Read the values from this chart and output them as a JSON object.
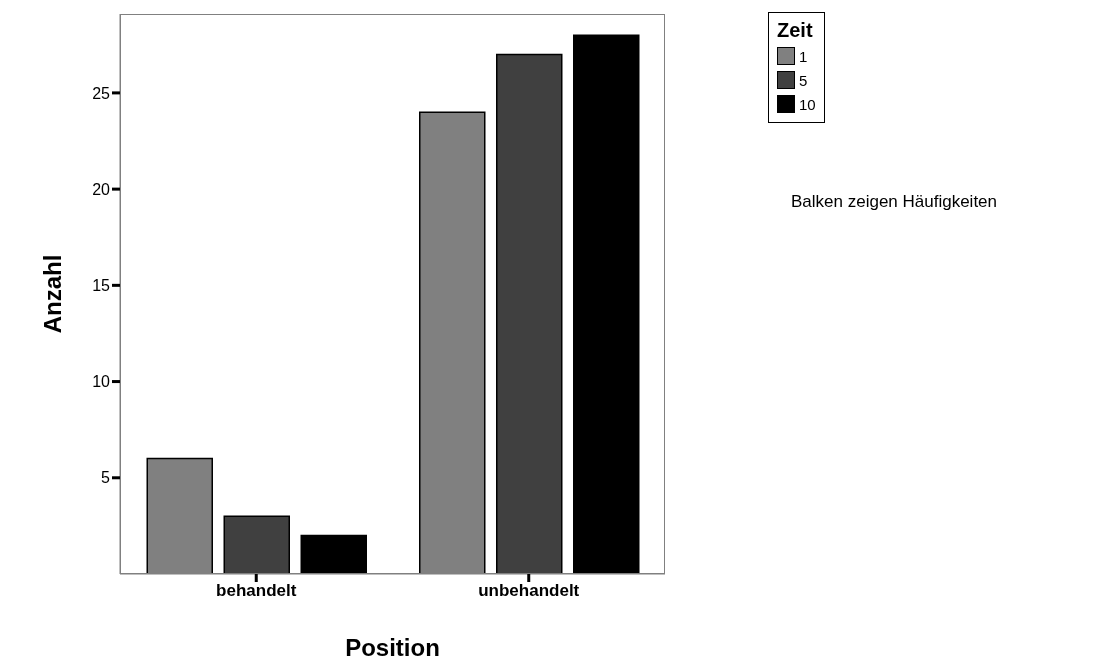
{
  "chart_data": {
    "type": "bar",
    "xlabel": "Position",
    "ylabel": "Anzahl",
    "legend_title": "Zeit",
    "categories": [
      "behandelt",
      "unbehandelt"
    ],
    "series": [
      {
        "name": "1",
        "color": "#808080",
        "values": [
          6,
          24
        ]
      },
      {
        "name": "5",
        "color": "#404040",
        "values": [
          3,
          27
        ]
      },
      {
        "name": "10",
        "color": "#000000",
        "values": [
          2,
          28
        ]
      }
    ],
    "ylim": [
      0,
      29.1
    ],
    "yticks": [
      5,
      10,
      15,
      20,
      25
    ],
    "grid": false,
    "legend": "right",
    "annotations": [
      "Balken zeigen Häufigkeiten"
    ]
  }
}
